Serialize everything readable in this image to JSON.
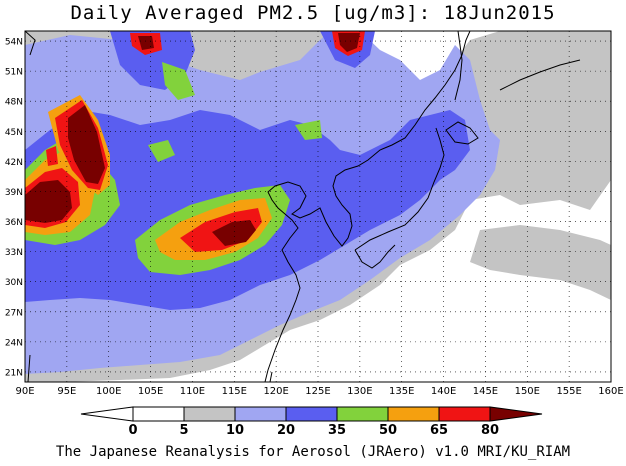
{
  "title": "Daily Averaged PM2.5 [ug/m3]: 18Jun2015",
  "credit": "The Japanese Reanalysis for Aerosol (JRAero) v1.0 MRI/KU_RIAM",
  "map": {
    "lon_range": [
      90,
      160
    ],
    "lat_range": [
      20,
      55
    ],
    "x_ticks": [
      "90E",
      "95E",
      "100E",
      "105E",
      "110E",
      "115E",
      "120E",
      "125E",
      "130E",
      "135E",
      "140E",
      "145E",
      "150E",
      "155E",
      "160E"
    ],
    "y_ticks": [
      "54N",
      "51N",
      "48N",
      "45N",
      "42N",
      "39N",
      "36N",
      "33N",
      "30N",
      "27N",
      "24N",
      "21N"
    ],
    "grid": "dotted"
  },
  "legend": {
    "levels": [
      "0",
      "5",
      "10",
      "20",
      "35",
      "50",
      "65",
      "80"
    ],
    "colors": [
      "#ffffff",
      "#c4c4c4",
      "#a0a6f2",
      "#5a5ef0",
      "#82d23c",
      "#f5a00f",
      "#f01414",
      "#780000"
    ]
  },
  "palette": {
    "grey": "#c4c4c4",
    "lightblue": "#a0a6f2",
    "blue": "#5a5ef0",
    "green": "#82d23c",
    "orange": "#f5a00f",
    "red": "#f01414",
    "darkred": "#780000"
  }
}
